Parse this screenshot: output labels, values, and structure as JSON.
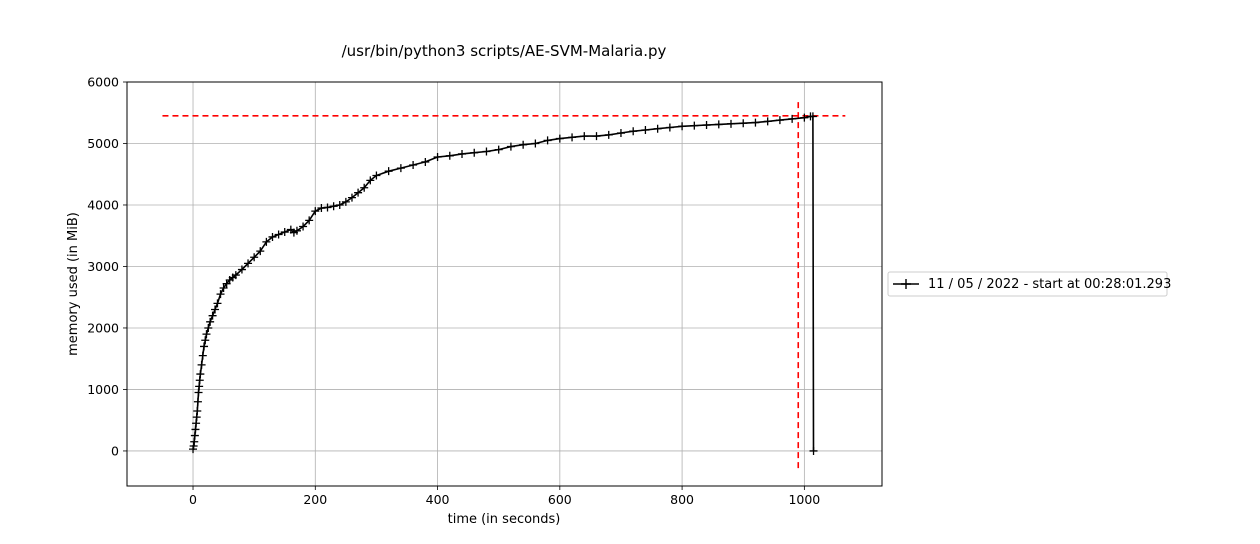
{
  "chart_data": {
    "type": "line",
    "title": "/usr/bin/python3 scripts/AE-SVM-Malaria.py",
    "xlabel": "time (in seconds)",
    "ylabel": "memory used (in MiB)",
    "xlim": [
      -108,
      1127
    ],
    "ylim": [
      -570,
      6000
    ],
    "xticks": [
      0,
      200,
      400,
      600,
      800,
      1000
    ],
    "yticks": [
      0,
      1000,
      2000,
      3000,
      4000,
      5000,
      6000
    ],
    "grid": true,
    "legend_placement": "outside-right",
    "series": [
      {
        "name": "11 / 05 / 2022 - start at 00:28:01.293",
        "color": "#000000",
        "marker": "+",
        "x": [
          0,
          1,
          2,
          3,
          4,
          5,
          6,
          7,
          8,
          9,
          10,
          11,
          12,
          14,
          16,
          18,
          20,
          22,
          25,
          28,
          32,
          36,
          40,
          45,
          50,
          55,
          60,
          65,
          70,
          80,
          90,
          100,
          110,
          120,
          130,
          140,
          150,
          160,
          165,
          170,
          180,
          190,
          200,
          210,
          220,
          230,
          240,
          250,
          260,
          270,
          280,
          290,
          300,
          320,
          340,
          360,
          380,
          400,
          420,
          440,
          460,
          480,
          500,
          520,
          540,
          560,
          580,
          600,
          620,
          640,
          660,
          680,
          700,
          720,
          740,
          760,
          780,
          800,
          820,
          840,
          860,
          880,
          900,
          920,
          940,
          960,
          980,
          1000,
          1010,
          1014,
          1015
        ],
        "y": [
          30,
          80,
          150,
          250,
          350,
          450,
          550,
          650,
          800,
          950,
          1050,
          1150,
          1250,
          1400,
          1550,
          1700,
          1800,
          1900,
          2000,
          2100,
          2200,
          2300,
          2400,
          2550,
          2650,
          2720,
          2780,
          2820,
          2860,
          2950,
          3050,
          3150,
          3250,
          3400,
          3480,
          3520,
          3560,
          3600,
          3550,
          3580,
          3650,
          3750,
          3900,
          3950,
          3960,
          3980,
          4000,
          4050,
          4120,
          4200,
          4280,
          4400,
          4480,
          4550,
          4600,
          4650,
          4700,
          4780,
          4800,
          4830,
          4850,
          4870,
          4900,
          4950,
          4980,
          5000,
          5050,
          5080,
          5100,
          5120,
          5120,
          5140,
          5170,
          5200,
          5220,
          5240,
          5260,
          5280,
          5290,
          5300,
          5310,
          5320,
          5330,
          5340,
          5360,
          5380,
          5400,
          5420,
          5440,
          5440,
          0
        ]
      }
    ],
    "reference_lines": [
      {
        "orientation": "horizontal",
        "value": 5450,
        "from": -50,
        "to": 1067,
        "color": "#ff0000",
        "style": "dashed"
      },
      {
        "orientation": "vertical",
        "value": 990,
        "from": -280,
        "to": 5720,
        "color": "#ff0000",
        "style": "dashed"
      }
    ]
  }
}
